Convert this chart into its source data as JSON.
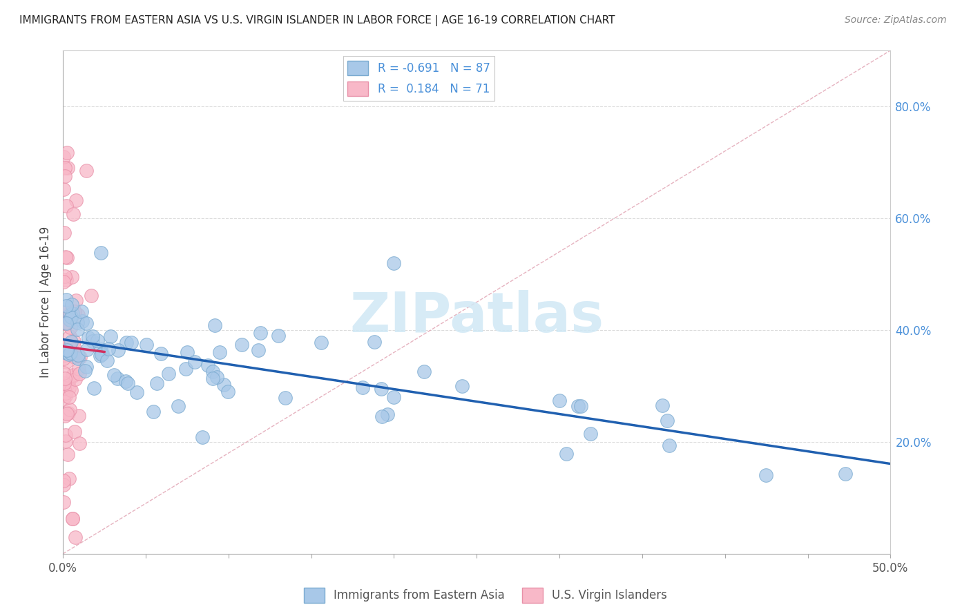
{
  "title": "IMMIGRANTS FROM EASTERN ASIA VS U.S. VIRGIN ISLANDER IN LABOR FORCE | AGE 16-19 CORRELATION CHART",
  "source": "Source: ZipAtlas.com",
  "ylabel": "In Labor Force | Age 16-19",
  "xlim": [
    0.0,
    0.5
  ],
  "ylim": [
    0.0,
    0.9
  ],
  "blue_R": -0.691,
  "blue_N": 87,
  "pink_R": 0.184,
  "pink_N": 71,
  "blue_color": "#a8c8e8",
  "pink_color": "#f8b8c8",
  "blue_edge": "#7aaad0",
  "pink_edge": "#e890a8",
  "trend_blue_color": "#2060b0",
  "trend_pink_color": "#d03060",
  "diag_color": "#e0a0b0",
  "legend_label_blue": "Immigrants from Eastern Asia",
  "legend_label_pink": "U.S. Virgin Islanders",
  "watermark_color": "#d0e8f5",
  "grid_color": "#dddddd",
  "right_tick_color": "#4a90d9"
}
